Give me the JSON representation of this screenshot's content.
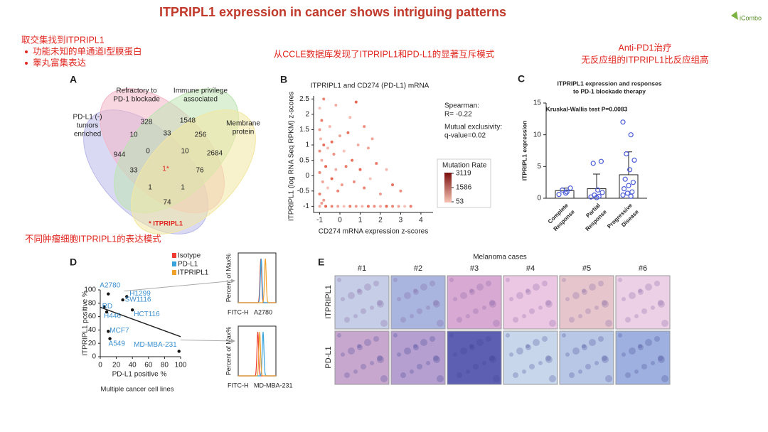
{
  "title": "ITPRIPL1 expression in cancer shows intriguing patterns",
  "logo": "iCombo",
  "notes": {
    "intersection": {
      "heading": "取交集找到ITPRIPL1",
      "bullets": [
        "功能未知的单通道I型膜蛋白",
        "睾丸富集表达"
      ]
    },
    "ccle": "从CCLE数据库发现了ITPRIPL1和PD-L1的显著互斥模式",
    "anti_pd1": [
      "Anti-PD1治疗",
      "无反应组的ITPRIPL1比反应组高"
    ],
    "cell_lines": "不同肿瘤细胞ITPRIPL1的表达模式"
  },
  "panel_a": {
    "letter": "A",
    "sets": [
      {
        "label": [
          "PD-L1 (-)",
          "tumors",
          "enriched"
        ],
        "color": "#b9b9ea"
      },
      {
        "label": [
          "Refractory to",
          "PD-1 blockade"
        ],
        "color": "#f3b7c7"
      },
      {
        "label": [
          "Immune privilege",
          "associated"
        ],
        "color": "#bde4b2"
      },
      {
        "label": [
          "Membrane",
          "protein"
        ],
        "color": "#f3e7a2"
      }
    ],
    "regions": [
      328,
      1548,
      10,
      33,
      256,
      944,
      0,
      10,
      2684,
      33,
      "1*",
      76,
      1,
      1,
      74
    ],
    "footnote": "* ITPRIPL1"
  },
  "panel_b": {
    "letter": "B",
    "chart": {
      "type": "scatter",
      "title": "ITPRIPL1 and CD274 (PD-L1) mRNA",
      "x_label": "CD274 mRNA expression z-scores",
      "y_label": "ITPRIPL1  (log RNA Seq RPKM) z-scores",
      "xlim": [
        -1.3,
        4.6
      ],
      "ylim": [
        -1.2,
        2.6
      ],
      "xticks": [
        -1,
        0,
        1,
        2,
        3,
        4
      ],
      "yticks": [
        -1,
        -0.5,
        0,
        0.5,
        1,
        1.5,
        2,
        2.5
      ],
      "color": "#e5533d",
      "x": [
        -1,
        -0.9,
        -1,
        -0.95,
        -0.8,
        -1,
        -0.9,
        -0.7,
        -1,
        -0.85,
        -0.6,
        -1,
        -0.8,
        -0.5,
        -0.4,
        -0.3,
        -0.2,
        -0.4,
        -0.1,
        0,
        0.2,
        0.3,
        0.1,
        0.5,
        0.6,
        0.7,
        0.9,
        1.0,
        1.2,
        1.4,
        1.5,
        1.8,
        2.0,
        2.3,
        2.6,
        3.0,
        -1,
        -0.7,
        -0.4,
        -0.1,
        0.2,
        0.5,
        0.8,
        1.1,
        1.4,
        1.7,
        2.0,
        2.3,
        2.6,
        2.9,
        3.2,
        3.5,
        -0.9,
        -0.6,
        0.4,
        1.2,
        -0.2,
        0.8,
        -0.8,
        1.6
      ],
      "y": [
        2.2,
        1.8,
        1.5,
        1.2,
        1.0,
        0.8,
        0.5,
        0.3,
        0.1,
        -0.2,
        -0.4,
        -0.6,
        -0.8,
        1.6,
        1.1,
        0.7,
        0.2,
        -0.1,
        -0.5,
        1.3,
        0.8,
        0.3,
        -0.3,
        1.9,
        0.5,
        -0.2,
        1.0,
        0.2,
        -0.4,
        0.9,
        -0.1,
        0.4,
        -0.6,
        0.2,
        -0.3,
        -0.5,
        -1,
        -1,
        -1,
        -1,
        -1,
        -1,
        -1,
        -1,
        -1,
        -1,
        -1,
        -1,
        -1,
        -1,
        -1,
        -1,
        -0.9,
        0.9,
        1.4,
        1.6,
        2.3,
        2.4,
        2.5,
        1.2
      ],
      "annotations": [
        "Spearman:",
        "R= -0.22",
        "Mutual exclusivity:",
        "q-value=0.02"
      ],
      "colorbar": {
        "title": "Mutation Rate",
        "ticks": [
          3119,
          1586,
          53
        ],
        "colors": [
          "#f7c3b5",
          "#7a0d0d"
        ]
      }
    }
  },
  "panel_c": {
    "letter": "C",
    "chart": {
      "type": "bar",
      "title": [
        "ITPRIPL1 expression and responses",
        "to PD-1 blockade therapy"
      ],
      "annotation": "Kruskal-Wallis test P=0.0083",
      "y_label": "ITPRIPL1 expression",
      "categories": [
        [
          "Complete",
          "Response"
        ],
        [
          "Partial",
          "Response"
        ],
        [
          "Progressive",
          "Disease"
        ]
      ],
      "values": [
        1.2,
        1.5,
        3.7
      ],
      "errors": [
        0.4,
        2.3,
        3.6
      ],
      "points": [
        [
          0.6,
          1.0,
          1.3,
          1.6,
          0.8
        ],
        [
          0.2,
          0.3,
          0.5,
          0.9,
          1.3,
          5.5,
          5.8,
          0.1
        ],
        [
          12,
          10,
          7,
          6,
          4.5,
          3,
          2.5,
          2,
          1.5,
          1.0,
          0.8,
          0.5,
          0.3
        ]
      ],
      "point_color": "#4a5bd6",
      "ylim": [
        0,
        15
      ],
      "yticks": [
        0,
        5,
        10,
        15
      ]
    }
  },
  "panel_d": {
    "letter": "D",
    "legend": [
      {
        "name": "Isotype",
        "color": "#ee3b2f"
      },
      {
        "name": "PD-L1",
        "color": "#36a3dc"
      },
      {
        "name": "ITPRIPL1",
        "color": "#f0a12c"
      }
    ],
    "chart": {
      "type": "scatter",
      "x_label": "PD-L1 positive %",
      "y_label": "ITPRIPL1 positive %",
      "caption": "Multiple cancer cell lines",
      "labels": [
        "A2780",
        "H1299",
        "SW1116",
        "RD",
        "HCT116",
        "H446",
        "MCF7",
        "A549",
        "MD-MBA-231"
      ],
      "x": [
        10,
        33,
        28,
        5,
        40,
        8,
        10,
        12,
        98
      ],
      "y": [
        94,
        90,
        85,
        75,
        70,
        67,
        38,
        27,
        8
      ],
      "fit": {
        "x": [
          0,
          100
        ],
        "y": [
          74,
          30
        ]
      },
      "xlim": [
        0,
        100
      ],
      "ylim": [
        0,
        100
      ],
      "xticks": [
        0,
        20,
        40,
        60,
        80,
        100
      ],
      "yticks": [
        0,
        20,
        40,
        60,
        80,
        100
      ]
    },
    "histograms": {
      "y_label": "Percent of Max%",
      "x_label": "FITC-H",
      "xlim": [
        0,
        5
      ],
      "panels": [
        {
          "cell_line": "A2780",
          "peaks": [
            3.0,
            3.05,
            3.6
          ]
        },
        {
          "cell_line": "MD-MBA-231",
          "peaks": [
            2.6,
            3.3,
            2.85
          ]
        }
      ]
    }
  },
  "panel_e": {
    "letter": "E",
    "title": "Melanoma cases",
    "columns": [
      "#1",
      "#2",
      "#3",
      "#4",
      "#5",
      "#6"
    ],
    "rows": [
      "ITPRIPL1",
      "PD-L1"
    ]
  }
}
